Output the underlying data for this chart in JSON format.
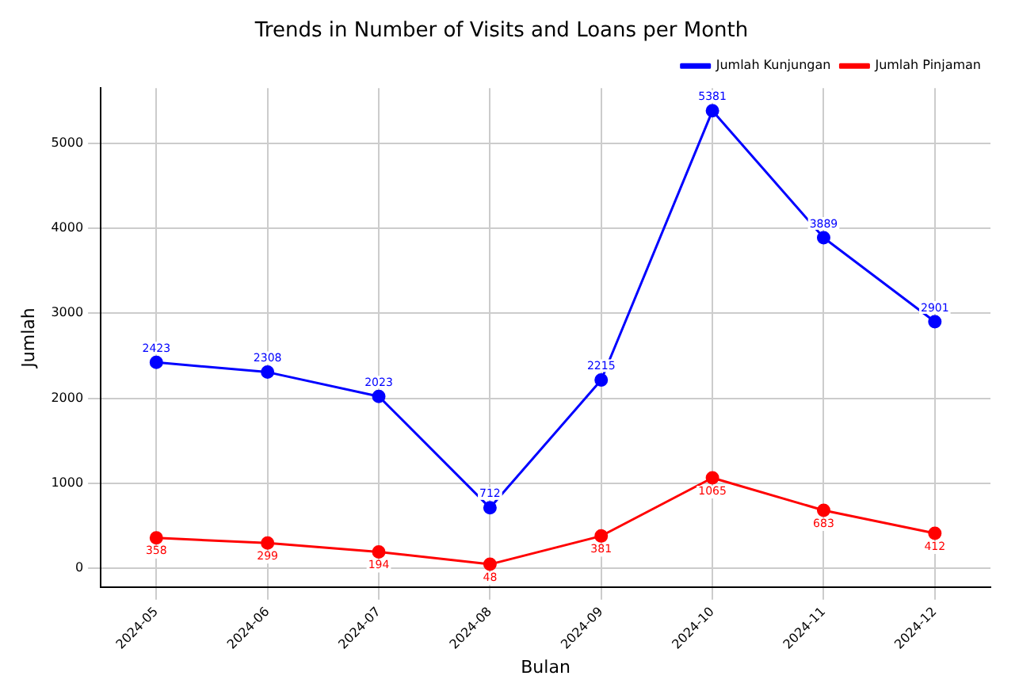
{
  "chart_data": {
    "type": "line",
    "title": "Trends in Number of Visits and Loans per Month",
    "xlabel": "Bulan",
    "ylabel": "Jumlah",
    "categories": [
      "2024-05",
      "2024-06",
      "2024-07",
      "2024-08",
      "2024-09",
      "2024-10",
      "2024-11",
      "2024-12"
    ],
    "series": [
      {
        "name": "Jumlah Kunjungan",
        "color": "#0000ff",
        "values": [
          2423,
          2308,
          2023,
          712,
          2215,
          5381,
          3889,
          2901
        ]
      },
      {
        "name": "Jumlah Pinjaman",
        "color": "#ff0000",
        "values": [
          358,
          299,
          194,
          48,
          381,
          1065,
          683,
          412
        ]
      }
    ],
    "ylim": [
      -219,
      5648
    ],
    "yticks": [
      0,
      1000,
      2000,
      3000,
      4000,
      5000
    ],
    "grid": true,
    "legend": "top right",
    "marker": "circle",
    "line_style": "solid",
    "data_labels": true
  }
}
